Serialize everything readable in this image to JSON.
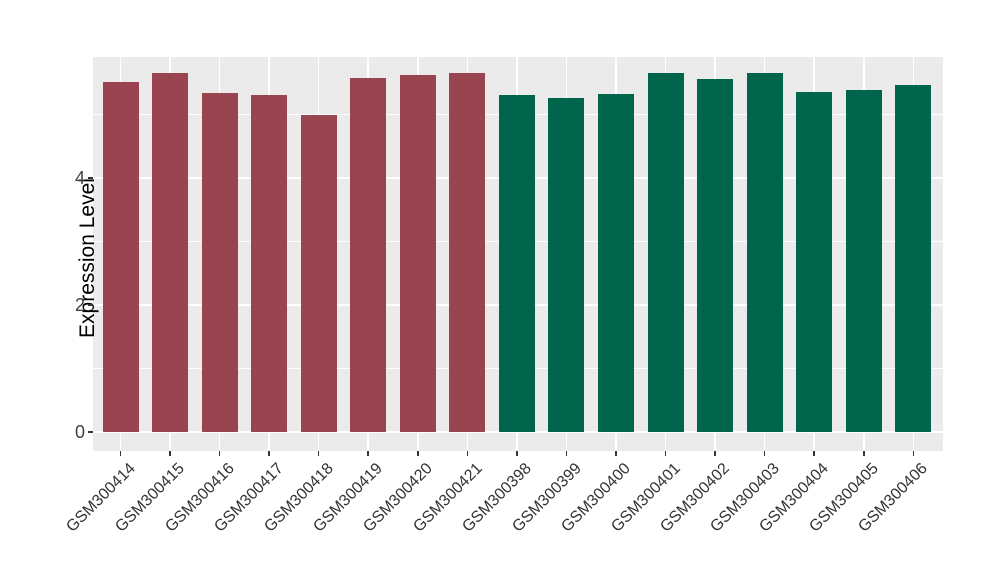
{
  "chart_data": {
    "type": "bar",
    "title": "",
    "xlabel": "",
    "ylabel": "Expression Level",
    "categories": [
      "GSM300414",
      "GSM300415",
      "GSM300416",
      "GSM300417",
      "GSM300418",
      "GSM300419",
      "GSM300420",
      "GSM300421",
      "GSM300398",
      "GSM300399",
      "GSM300400",
      "GSM300401",
      "GSM300402",
      "GSM300403",
      "GSM300404",
      "GSM300405",
      "GSM300406"
    ],
    "values": [
      5.51,
      5.66,
      5.34,
      5.31,
      4.99,
      5.58,
      5.62,
      5.65,
      5.31,
      5.26,
      5.32,
      5.66,
      5.56,
      5.66,
      5.36,
      5.39,
      5.47
    ],
    "groups": [
      "group1",
      "group1",
      "group1",
      "group1",
      "group1",
      "group1",
      "group1",
      "group1",
      "group2",
      "group2",
      "group2",
      "group2",
      "group2",
      "group2",
      "group2",
      "group2",
      "group2"
    ],
    "group_colors": {
      "group1": "#9A4451",
      "group2": "#00664B"
    },
    "yticks": [
      0,
      2,
      4
    ],
    "yticks_minor": [
      1,
      3,
      5
    ],
    "ylim": [
      -0.28,
      5.91
    ],
    "grid": "on",
    "legend": "none",
    "panel_background": "#EBEBEB",
    "gridline_color": "#FFFFFF"
  }
}
